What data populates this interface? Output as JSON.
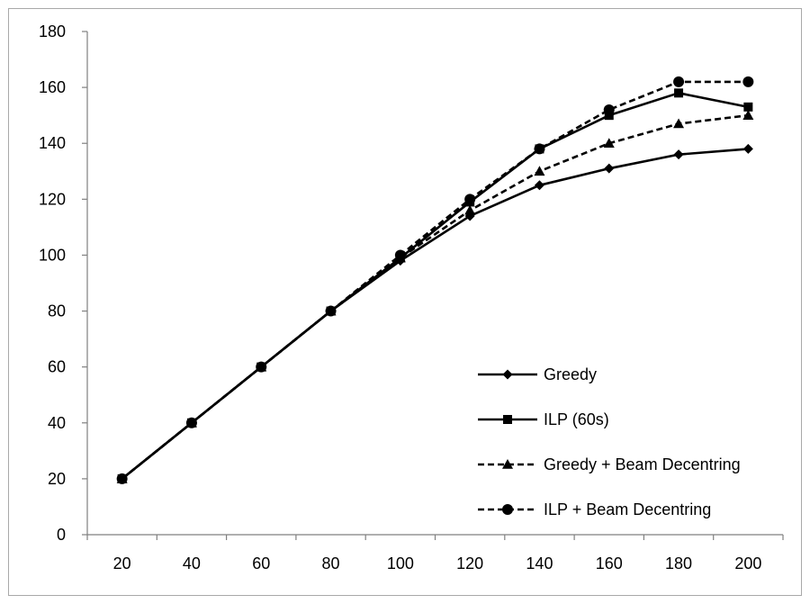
{
  "chart_data": {
    "type": "line",
    "title": "",
    "xlabel": "",
    "ylabel": "",
    "x": [
      20,
      40,
      60,
      80,
      100,
      120,
      140,
      160,
      180,
      200
    ],
    "xticks": [
      "20",
      "40",
      "60",
      "80",
      "100",
      "120",
      "140",
      "160",
      "180",
      "200"
    ],
    "yticks": [
      "0",
      "20",
      "40",
      "60",
      "80",
      "100",
      "120",
      "140",
      "160",
      "180"
    ],
    "ylim": [
      0,
      180
    ],
    "grid": false,
    "legend_position": "bottom-right",
    "series": [
      {
        "name": "Greedy",
        "marker": "diamond",
        "dash": "solid",
        "values": [
          20,
          40,
          60,
          80,
          98,
          114,
          125,
          131,
          136,
          138
        ]
      },
      {
        "name": "ILP (60s)",
        "marker": "square",
        "dash": "solid",
        "values": [
          20,
          40,
          60,
          80,
          99,
          119,
          138,
          150,
          158,
          153
        ]
      },
      {
        "name": "Greedy + Beam Decentring",
        "marker": "triangle",
        "dash": "dashed",
        "values": [
          20,
          40,
          60,
          80,
          99,
          116,
          130,
          140,
          147,
          150
        ]
      },
      {
        "name": "ILP + Beam Decentring",
        "marker": "circle",
        "dash": "dashed",
        "values": [
          20,
          40,
          60,
          80,
          100,
          120,
          138,
          152,
          162,
          162
        ]
      }
    ],
    "colors": {
      "line": "#000000",
      "axis": "#808080",
      "frame": "#a9a9a9"
    }
  }
}
